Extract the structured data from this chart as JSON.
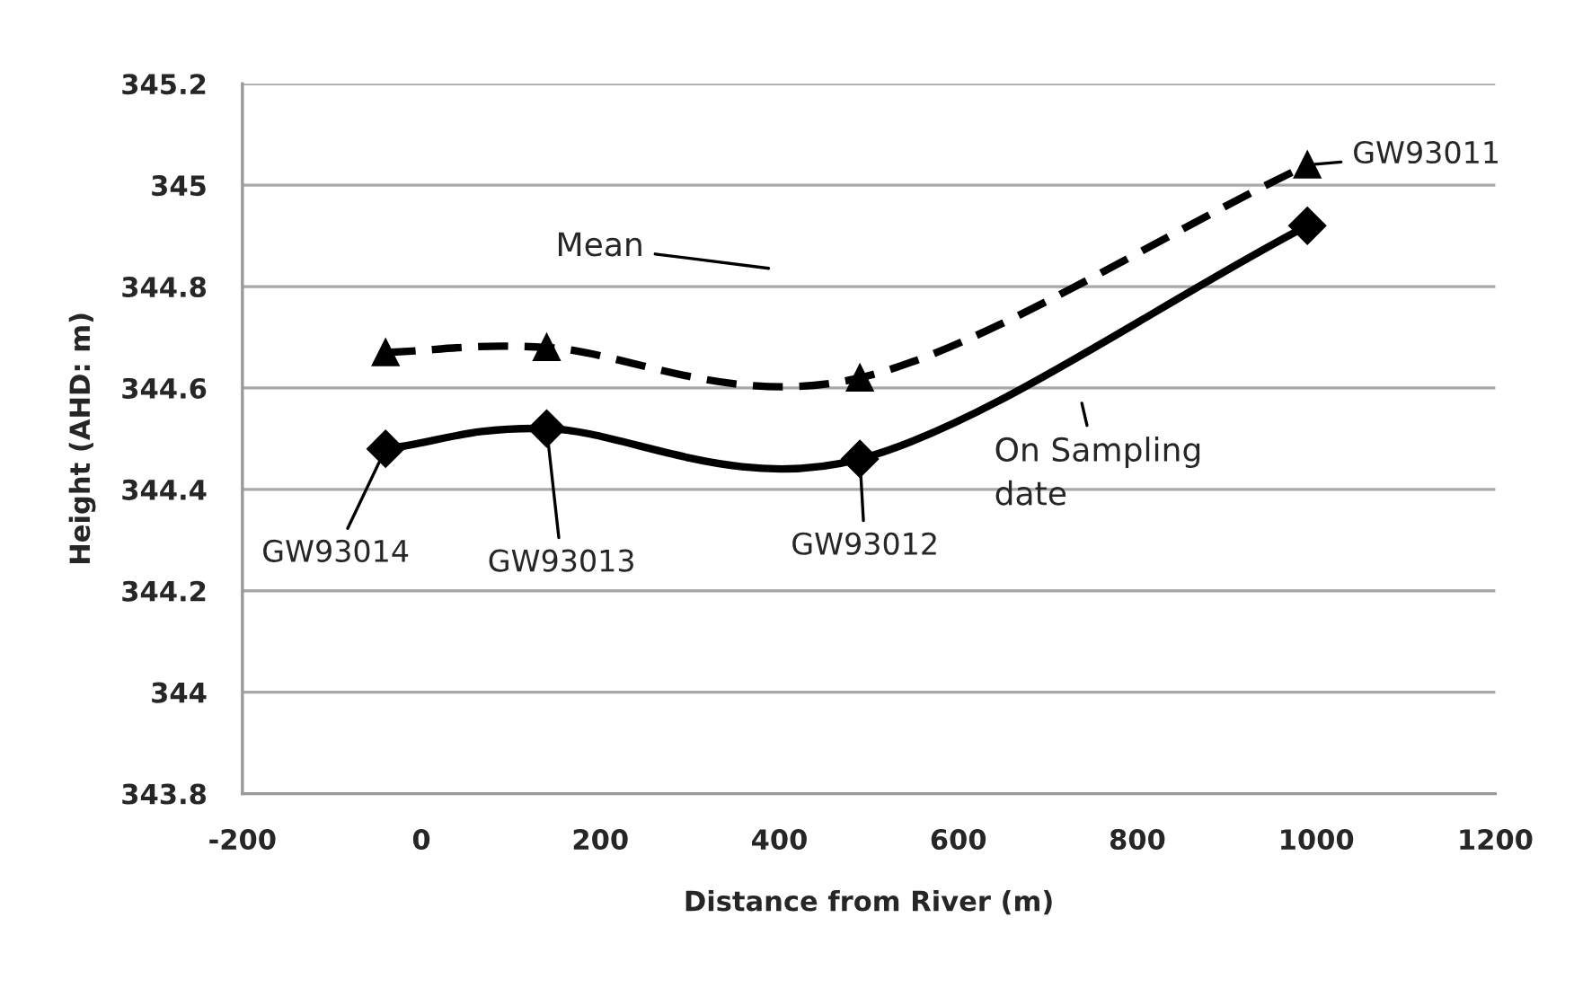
{
  "chart_data": {
    "type": "line",
    "xlabel": "Distance from River (m)",
    "ylabel": "Height (AHD: m)",
    "x": [
      -40,
      140,
      490,
      990
    ],
    "series": [
      {
        "color": "#000000",
        "marker": "diamond",
        "line_style": "solid",
        "values": [
          344.48,
          344.52,
          344.46,
          344.92
        ]
      },
      {
        "color": "#000000",
        "marker": "triangle",
        "line_style": "dashed",
        "values": [
          344.67,
          344.68,
          344.62,
          345.04
        ]
      }
    ],
    "xlim": [
      -200,
      1200
    ],
    "xticks": [
      -200,
      0,
      200,
      400,
      600,
      800,
      1000,
      1200
    ],
    "ylim": [
      343.8,
      345.2
    ],
    "yticks": [
      343.8,
      344,
      344.2,
      344.4,
      344.6,
      344.8,
      345,
      345.2
    ],
    "grid": "y",
    "legend": false,
    "annotations": [
      {
        "text": "GW93014",
        "x": -40,
        "y": 344.48
      },
      {
        "text": "GW93013",
        "x": 140,
        "y": 344.52
      },
      {
        "text": "GW93012",
        "x": 490,
        "y": 344.46
      },
      {
        "text": "GW93011",
        "x": 990,
        "y": 345.04
      },
      "Mean",
      "On Sampling\ndate"
    ]
  }
}
